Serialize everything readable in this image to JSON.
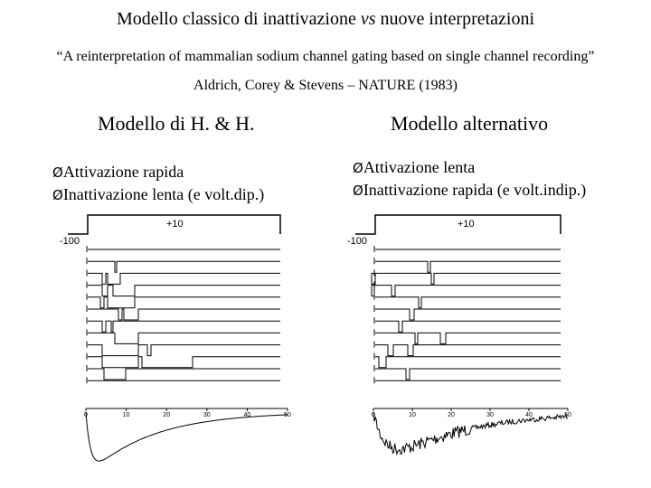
{
  "slide": {
    "title_main": "Modello classico di inattivazione ",
    "title_vs": "vs",
    "title_tail": " nuove interpretazioni",
    "quote": "“A reinterpretation of mammalian sodium channel gating based on single channel recording”",
    "authors": "Aldrich, Corey  & Stevens – NATURE (1983)"
  },
  "left_model": {
    "title": "Modello di H. & H.",
    "bullet_1": "Attivazione rapida",
    "bullet_2": "Inattivazione lenta (e volt.dip.)",
    "voltage_high": "+10",
    "voltage_low": "-100",
    "time_ticks": [
      "0",
      "10",
      "20",
      "30",
      "40",
      "50"
    ]
  },
  "right_model": {
    "title": "Modello alternativo",
    "bullet_1": "Attivazione lenta",
    "bullet_2": "Inattivazione rapida (e volt.indip.)",
    "voltage_high": "+10",
    "voltage_low": "-100",
    "time_ticks": [
      "0",
      "10",
      "20",
      "30",
      "40",
      "50"
    ]
  },
  "bullet_marker": "Ø"
}
